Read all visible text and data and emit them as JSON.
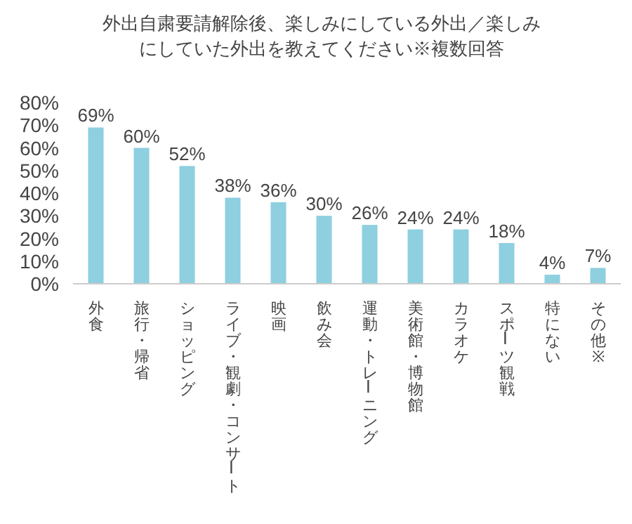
{
  "chart_data": {
    "type": "bar",
    "title": "外出自粛要請解除後、楽しみにしている外出／楽しみにしていた外出を教えてください※複数回答",
    "categories": [
      "外食",
      "旅行・帰省",
      "ショッピング",
      "ライブ・観劇・コンサート",
      "映画",
      "飲み会",
      "運動・トレーニング",
      "美術館・博物館",
      "カラオケ",
      "スポーツ観戦",
      "特にない",
      "その他※"
    ],
    "values": [
      69,
      60,
      52,
      38,
      36,
      30,
      26,
      24,
      24,
      18,
      4,
      7
    ],
    "value_labels": [
      "69%",
      "60%",
      "52%",
      "38%",
      "36%",
      "30%",
      "26%",
      "24%",
      "24%",
      "18%",
      "4%",
      "7%"
    ],
    "color": "#8ecfe0",
    "ylim": [
      0,
      80
    ],
    "yticks": [
      {
        "value": 0,
        "label": "0%"
      },
      {
        "value": 10,
        "label": "10%"
      },
      {
        "value": 20,
        "label": "20%"
      },
      {
        "value": 30,
        "label": "30%"
      },
      {
        "value": 40,
        "label": "40%"
      },
      {
        "value": 50,
        "label": "50%"
      },
      {
        "value": 60,
        "label": "60%"
      },
      {
        "value": 70,
        "label": "70%"
      },
      {
        "value": 80,
        "label": "80%"
      }
    ],
    "grid": false,
    "legend": false
  }
}
